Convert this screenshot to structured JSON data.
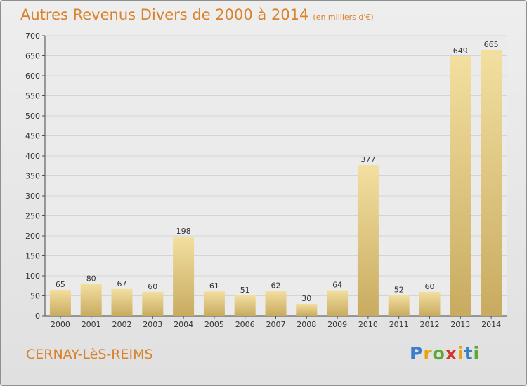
{
  "header": {
    "title": "Autres Revenus Divers de 2000 à 2014",
    "subtitle": "(en milliers d'€)"
  },
  "footer": {
    "city": "CERNAY-LèS-REIMS",
    "logo": {
      "letters": [
        "P",
        "r",
        "o",
        "x",
        "i",
        "t",
        "i"
      ],
      "colors": [
        "#3a7fc8",
        "#e8a20c",
        "#5aa832",
        "#d6322e",
        "#e8a20c",
        "#3a7fc8",
        "#5aa832"
      ]
    }
  },
  "colors": {
    "accent": "#d9822b",
    "bar_light": "#f3dfa0",
    "bar_dark": "#c8ab60",
    "grid": "#d4d4d4"
  },
  "chart_data": {
    "type": "bar",
    "categories": [
      "2000",
      "2001",
      "2002",
      "2003",
      "2004",
      "2005",
      "2006",
      "2007",
      "2008",
      "2009",
      "2010",
      "2011",
      "2012",
      "2013",
      "2014"
    ],
    "values": [
      65,
      80,
      67,
      60,
      198,
      61,
      51,
      62,
      30,
      64,
      377,
      52,
      60,
      649,
      665
    ],
    "ylim": [
      0,
      700
    ],
    "yticks": [
      0,
      50,
      100,
      150,
      200,
      250,
      300,
      350,
      400,
      450,
      500,
      550,
      600,
      650,
      700
    ],
    "grid": true,
    "data_labels": true
  }
}
